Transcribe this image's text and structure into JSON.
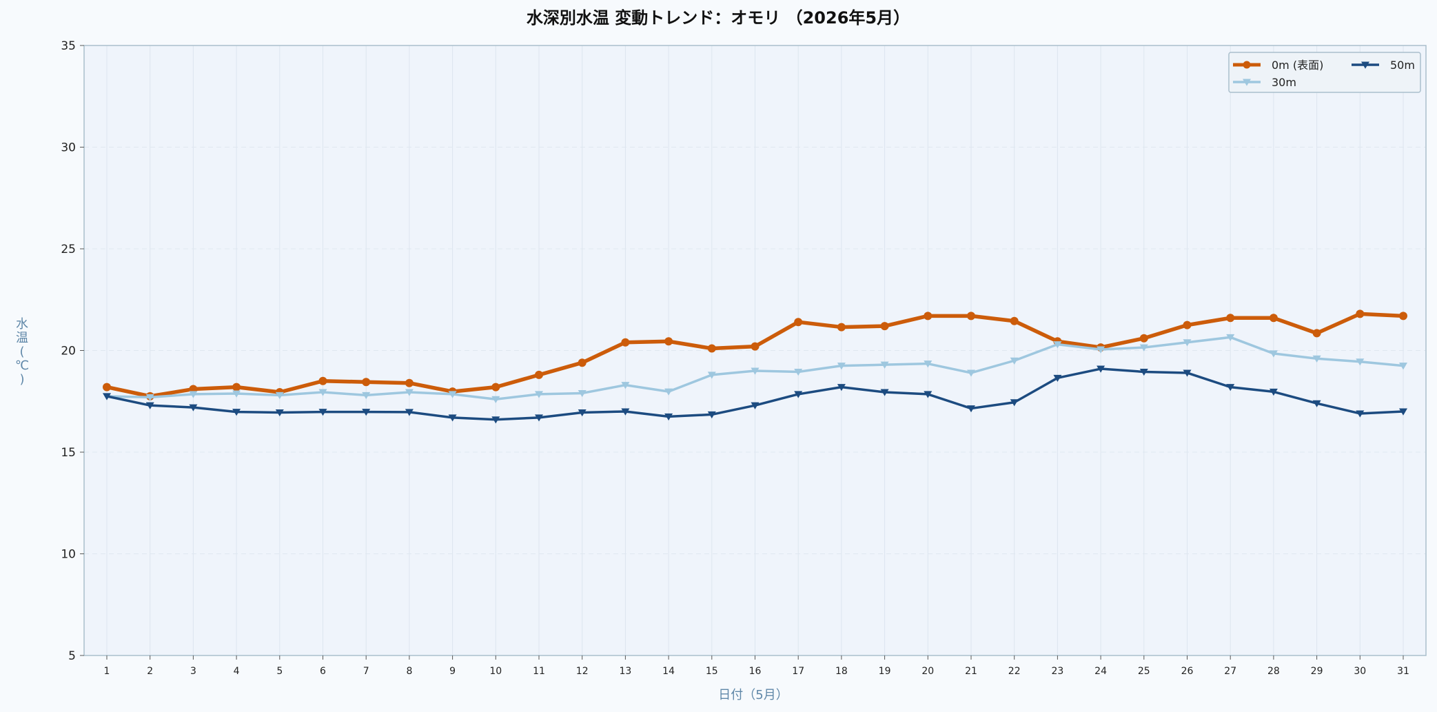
{
  "chart_data": {
    "type": "line",
    "title": "水深別水温 変動トレンド：オモリ （2026年5月）",
    "xlabel": "日付（5月）",
    "ylabel": "水温（℃）",
    "ylim": [
      5,
      35
    ],
    "yticks": [
      5,
      10,
      15,
      20,
      25,
      30,
      35
    ],
    "grid": true,
    "legend_position": "top-right",
    "x": [
      1,
      2,
      3,
      4,
      5,
      6,
      7,
      8,
      9,
      10,
      11,
      12,
      13,
      14,
      15,
      16,
      17,
      18,
      19,
      20,
      21,
      22,
      23,
      24,
      25,
      26,
      27,
      28,
      29,
      30,
      31
    ],
    "series": [
      {
        "name": "0m (表面)",
        "color": "#cc5c0a",
        "marker": "circle",
        "values": [
          18.2,
          17.75,
          18.1,
          18.2,
          17.95,
          18.5,
          18.45,
          18.4,
          17.98,
          18.2,
          18.8,
          19.4,
          20.4,
          20.45,
          20.1,
          20.2,
          21.4,
          21.15,
          21.2,
          21.7,
          21.7,
          21.45,
          20.45,
          20.15,
          20.6,
          21.25,
          21.6,
          21.6,
          20.85,
          21.8,
          21.7
        ]
      },
      {
        "name": "30m",
        "color": "#9ec7df",
        "marker": "triangle-down",
        "values": [
          17.75,
          17.7,
          17.85,
          17.88,
          17.8,
          17.95,
          17.8,
          17.95,
          17.85,
          17.6,
          17.85,
          17.9,
          18.3,
          17.98,
          18.8,
          19.0,
          18.95,
          19.25,
          19.3,
          19.35,
          18.9,
          19.5,
          20.3,
          20.05,
          20.15,
          20.4,
          20.65,
          19.85,
          19.6,
          19.45,
          19.25
        ]
      },
      {
        "name": "50m",
        "color": "#1c4b80",
        "marker": "triangle-down",
        "values": [
          17.75,
          17.3,
          17.2,
          16.98,
          16.95,
          16.98,
          16.98,
          16.97,
          16.7,
          16.6,
          16.7,
          16.95,
          17.0,
          16.75,
          16.85,
          17.3,
          17.85,
          18.2,
          17.95,
          17.85,
          17.15,
          17.45,
          18.65,
          19.1,
          18.95,
          18.9,
          18.2,
          17.97,
          17.4,
          16.9,
          17.0
        ]
      }
    ]
  }
}
